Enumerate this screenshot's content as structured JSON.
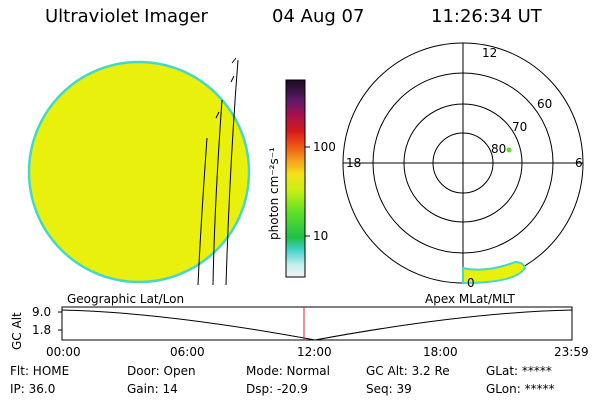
{
  "header": {
    "title": "Ultraviolet Imager",
    "date": "04 Aug 07",
    "time": "11:26:34 UT"
  },
  "colorbar": {
    "label": "photon cm⁻²s⁻¹",
    "ticks": [
      "100",
      "10"
    ]
  },
  "polar": {
    "mlt_labels": [
      "12",
      "18",
      "6",
      "0"
    ],
    "lat_labels": [
      "60",
      "70",
      "80"
    ]
  },
  "map_labels": {
    "left": "Geographic Lat/Lon",
    "right": "Apex MLat/MLT"
  },
  "altitude_plot": {
    "ylabel": "GC Alt",
    "yticks": [
      "9.0",
      "1.8"
    ],
    "xticks": [
      "00:00",
      "06:00",
      "12:00",
      "18:00",
      "23:59"
    ]
  },
  "status": {
    "row1": [
      {
        "key": "flt",
        "text": "Flt: HOME"
      },
      {
        "key": "door",
        "text": "Door: Open"
      },
      {
        "key": "mode",
        "text": "Mode: Normal"
      },
      {
        "key": "gcalt",
        "text": "GC Alt: 3.2 Re"
      },
      {
        "key": "glat",
        "text": "GLat: *****"
      }
    ],
    "row2": [
      {
        "key": "ip",
        "text": "IP: 36.0"
      },
      {
        "key": "gain",
        "text": "Gain: 14"
      },
      {
        "key": "dsp",
        "text": "Dsp: -20.9"
      },
      {
        "key": "seq",
        "text": "Seq: 39"
      },
      {
        "key": "glon",
        "text": "GLon: *****"
      }
    ]
  },
  "colors": {
    "disk_fill": "#e8f00c",
    "disk_edge": "#44d9c6",
    "time_marker": "#d42020"
  }
}
